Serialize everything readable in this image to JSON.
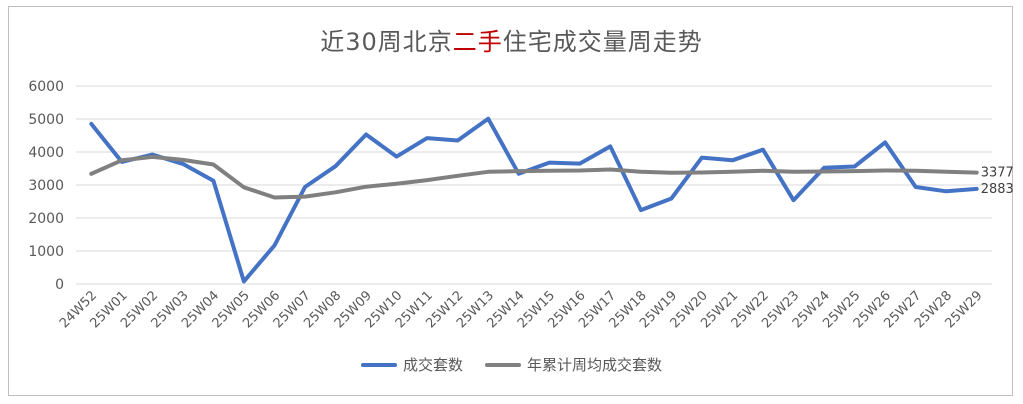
{
  "chart_data": {
    "type": "line",
    "title_pre": "近30周北京",
    "title_highlight": "二手",
    "title_post": "住宅成交量周走势",
    "xlabel": "",
    "ylabel": "",
    "ylim": [
      0,
      6000
    ],
    "yticks": [
      0,
      1000,
      2000,
      3000,
      4000,
      5000,
      6000
    ],
    "grid": true,
    "legend_position": "bottom",
    "highlight_color": "#c00000",
    "x": [
      "24W52",
      "25W01",
      "25W02",
      "25W03",
      "25W04",
      "25W05",
      "25W06",
      "25W07",
      "25W08",
      "25W09",
      "25W10",
      "25W11",
      "25W12",
      "25W13",
      "25W14",
      "25W15",
      "25W16",
      "25W17",
      "25W18",
      "25W19",
      "25W20",
      "25W21",
      "25W22",
      "25W23",
      "25W24",
      "25W25",
      "25W26",
      "25W27",
      "25W28",
      "25W29"
    ],
    "series": [
      {
        "name": "成交套数",
        "color": "#4472c4",
        "values": [
          4850,
          3700,
          3920,
          3640,
          3130,
          80,
          1170,
          2940,
          3570,
          4530,
          3860,
          4420,
          4350,
          5010,
          3340,
          3680,
          3650,
          4170,
          2240,
          2590,
          3830,
          3750,
          4070,
          2540,
          3520,
          3560,
          4290,
          2940,
          2810,
          2883
        ]
      },
      {
        "name": "年累计周均成交套数",
        "color": "#808080",
        "values": [
          3340,
          3750,
          3850,
          3760,
          3620,
          2930,
          2620,
          2650,
          2780,
          2950,
          3040,
          3150,
          3280,
          3400,
          3420,
          3430,
          3440,
          3470,
          3400,
          3370,
          3380,
          3400,
          3430,
          3400,
          3410,
          3420,
          3440,
          3430,
          3400,
          3377
        ]
      }
    ],
    "end_labels": [
      "2883",
      "3377"
    ]
  }
}
